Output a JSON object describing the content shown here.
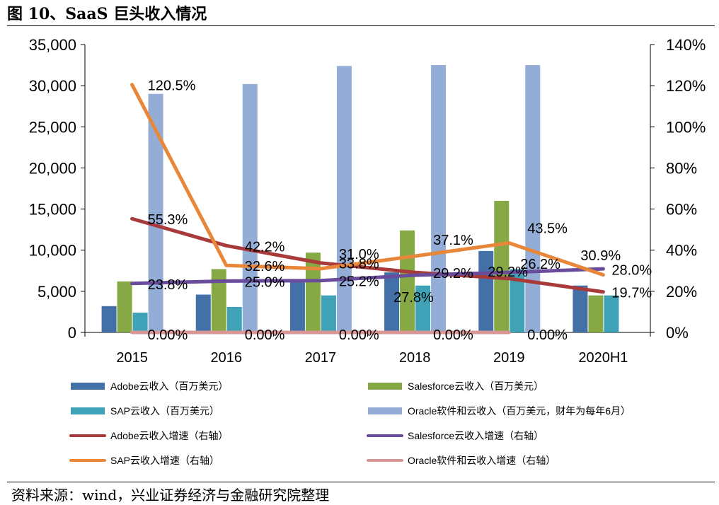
{
  "figure": {
    "title": "图 10、SaaS 巨头收入情况",
    "source": "资料来源：wind，兴业证券经济与金融研究院整理"
  },
  "chart_data": {
    "type": "bar",
    "categories": [
      "2015",
      "2016",
      "2017",
      "2018",
      "2019",
      "2020H1"
    ],
    "y_left": {
      "lim": [
        0,
        35000
      ],
      "ticks": [
        "0",
        "5,000",
        "10,000",
        "15,000",
        "20,000",
        "25,000",
        "30,000",
        "35,000"
      ]
    },
    "y_right": {
      "lim": [
        0,
        140
      ],
      "ticks": [
        "0%",
        "20%",
        "40%",
        "60%",
        "80%",
        "100%",
        "120%",
        "140%"
      ]
    },
    "grid": false,
    "legend_position": "bottom",
    "bar_series": [
      {
        "name": "Adobe云收入（百万美元）",
        "color": "#4470A8",
        "values": [
          3200,
          4600,
          6100,
          7300,
          9900,
          5700
        ]
      },
      {
        "name": "Salesforce云收入（百万美元）",
        "color": "#86A845",
        "values": [
          6200,
          7700,
          9700,
          12400,
          16000,
          4500
        ]
      },
      {
        "name": "SAP云收入（百万美元）",
        "color": "#3FA2B6",
        "values": [
          2400,
          3100,
          4500,
          5700,
          7700,
          4500
        ]
      },
      {
        "name": "Oracle软件和云收入（百万美元，财年为每年6月）",
        "color": "#94ADD6",
        "values": [
          29000,
          30200,
          32400,
          32500,
          32500,
          null
        ]
      }
    ],
    "line_series": [
      {
        "name": "Adobe云收入增速（右轴）",
        "color": "#A93A3A",
        "x": [
          "2015",
          "2016",
          "2017",
          "2018",
          "2019",
          "2020H1"
        ],
        "values": [
          55.3,
          42.2,
          33.8,
          29.2,
          26.2,
          19.7
        ],
        "labels": [
          "55.3%",
          "42.2%",
          "33.8%",
          "29.2%",
          "26.2%",
          "19.7%"
        ]
      },
      {
        "name": "Salesforce云收入增速（右轴）",
        "color": "#6A4C9C",
        "x": [
          "2015",
          "2016",
          "2017",
          "2018",
          "2019",
          "2020H1"
        ],
        "values": [
          23.8,
          25.0,
          25.2,
          27.8,
          29.2,
          30.9
        ],
        "labels": [
          "23.8%",
          "25.0%",
          "25.2%",
          "27.8%",
          "29.2%",
          "30.9%"
        ]
      },
      {
        "name": "SAP云收入增速（右轴）",
        "color": "#E8873A",
        "x": [
          "2015",
          "2016",
          "2017",
          "2018",
          "2019",
          "2020H1"
        ],
        "values": [
          120.5,
          32.6,
          31.0,
          37.1,
          43.5,
          28.0
        ],
        "labels": [
          "120.5%",
          "32.6%",
          "31.0%",
          "37.1%",
          "43.5%",
          "28.0%"
        ]
      },
      {
        "name": "Oracle软件和云收入增速（右轴）",
        "color": "#D99694",
        "x": [
          "2015",
          "2016",
          "2017",
          "2018",
          "2019"
        ],
        "values": [
          0.0,
          0.0,
          0.0,
          0.0,
          0.0
        ],
        "labels": [
          "0.00%",
          "0.00%",
          "0.00%",
          "0.00%",
          "0.00%"
        ]
      }
    ]
  }
}
